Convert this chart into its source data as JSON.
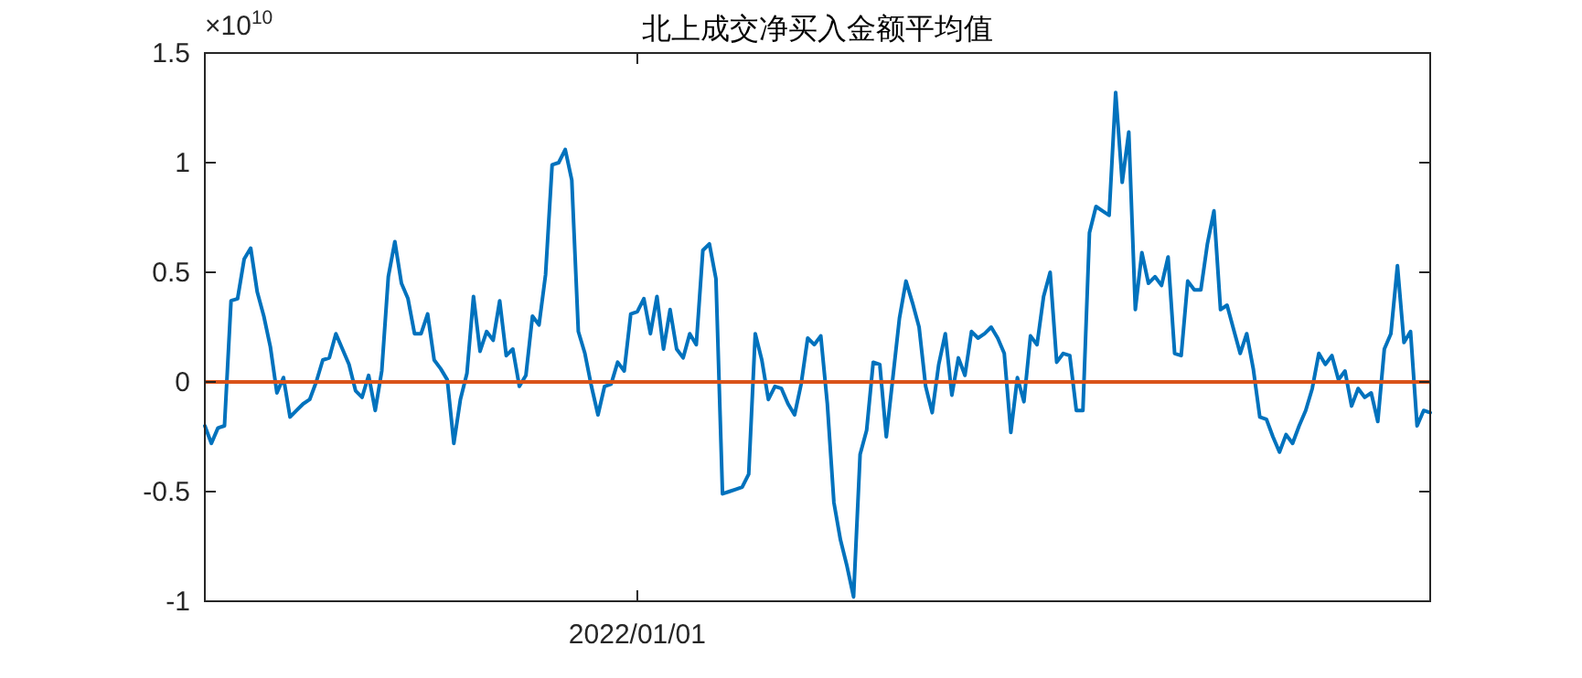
{
  "chart_data": {
    "type": "line",
    "title": "北上成交净买入金额平均值",
    "annotations": [
      "×10$^{10}$"
    ],
    "categories": [
      null,
      null,
      null,
      null,
      null,
      null,
      null,
      null,
      null,
      null,
      null,
      null,
      null,
      null,
      null,
      null,
      null,
      null,
      null,
      null,
      null,
      null,
      null,
      null,
      null,
      null,
      null,
      null,
      null,
      null,
      null,
      null,
      null,
      null,
      null,
      null,
      null,
      null,
      null,
      null,
      null,
      null,
      null,
      null,
      null,
      null,
      null,
      null,
      null,
      null,
      null,
      null,
      null,
      null,
      null,
      null,
      null,
      null,
      null,
      null,
      null,
      null,
      null,
      null,
      null,
      null,
      "2022/01/01",
      null,
      null,
      null,
      null,
      null,
      null,
      null,
      null,
      null,
      null,
      null,
      null,
      null,
      null,
      null,
      null,
      null,
      null,
      null,
      null,
      null,
      null,
      null,
      null,
      null,
      null,
      null,
      null,
      null,
      null,
      null,
      null,
      null,
      null,
      null,
      null,
      null,
      null,
      null,
      null,
      null,
      null,
      null,
      null,
      null,
      null,
      null,
      null,
      null,
      null,
      null,
      null,
      null,
      null,
      null,
      null,
      null,
      null,
      null,
      null,
      null,
      null,
      null,
      null,
      null,
      null,
      null,
      null,
      null,
      null,
      null,
      null,
      null,
      null,
      null,
      null,
      null,
      null,
      null,
      null,
      null,
      null,
      null,
      null,
      null,
      null,
      null,
      null,
      null,
      null,
      null,
      null,
      null,
      null,
      null,
      null,
      null,
      null,
      null,
      null,
      null,
      null,
      null,
      null,
      null,
      null,
      null,
      null,
      null,
      null,
      null,
      null,
      null,
      null,
      null,
      null,
      null,
      null,
      null,
      null,
      null
    ],
    "ylim": [
      -1,
      1.5
    ],
    "yticks": [
      -1,
      -0.5,
      0,
      0.5,
      1,
      1.5
    ],
    "ref_lines": [
      {
        "axis": "y",
        "value": 0,
        "color": "#d95319"
      }
    ],
    "series": [
      {
        "color": "#0072bd",
        "values": [
          -0.2,
          -0.28,
          -0.21,
          -0.2,
          0.37,
          0.38,
          0.56,
          0.61,
          0.41,
          0.3,
          0.16,
          -0.05,
          0.02,
          -0.16,
          -0.13,
          -0.1,
          -0.08,
          0,
          0.1,
          0.11,
          0.22,
          0.15,
          0.08,
          -0.04,
          -0.07,
          0.03,
          -0.13,
          0.05,
          0.48,
          0.64,
          0.45,
          0.38,
          0.22,
          0.22,
          0.31,
          0.1,
          0.06,
          0.01,
          -0.28,
          -0.08,
          0.04,
          0.39,
          0.14,
          0.23,
          0.19,
          0.37,
          0.12,
          0.15,
          -0.02,
          0.03,
          0.3,
          0.26,
          0.49,
          0.99,
          1.0,
          1.06,
          0.92,
          0.23,
          0.13,
          -0.02,
          -0.15,
          -0.02,
          -0.01,
          0.09,
          0.05,
          0.31,
          0.32,
          0.38,
          0.22,
          0.39,
          0.15,
          0.33,
          0.15,
          0.11,
          0.22,
          0.17,
          0.6,
          0.63,
          0.47,
          -0.51,
          -0.5,
          -0.49,
          -0.48,
          -0.42,
          0.22,
          0.1,
          -0.08,
          -0.02,
          -0.03,
          -0.1,
          -0.15,
          -0.01,
          0.2,
          0.17,
          0.21,
          -0.1,
          -0.55,
          -0.72,
          -0.84,
          -0.98,
          -0.33,
          -0.22,
          0.09,
          0.08,
          -0.25,
          0.02,
          0.29,
          0.46,
          0.36,
          0.25,
          -0.02,
          -0.14,
          0.08,
          0.22,
          -0.06,
          0.11,
          0.03,
          0.23,
          0.2,
          0.22,
          0.25,
          0.2,
          0.13,
          -0.23,
          0.02,
          -0.09,
          0.21,
          0.17,
          0.39,
          0.5,
          0.09,
          0.13,
          0.12,
          -0.13,
          -0.13,
          0.68,
          0.8,
          0.78,
          0.76,
          1.32,
          0.91,
          1.14,
          0.33,
          0.59,
          0.45,
          0.48,
          0.44,
          0.57,
          0.13,
          0.12,
          0.46,
          0.42,
          0.42,
          0.63,
          0.78,
          0.33,
          0.35,
          0.24,
          0.13,
          0.22,
          0.06,
          -0.16,
          -0.17,
          -0.25,
          -0.32,
          -0.24,
          -0.28,
          -0.2,
          -0.13,
          -0.03,
          0.13,
          0.08,
          0.12,
          0.01,
          0.05,
          -0.11,
          -0.03,
          -0.07,
          -0.05,
          -0.18,
          0.15,
          0.22,
          0.53,
          0.18,
          0.23,
          -0.2,
          -0.13,
          -0.14
        ]
      }
    ]
  }
}
